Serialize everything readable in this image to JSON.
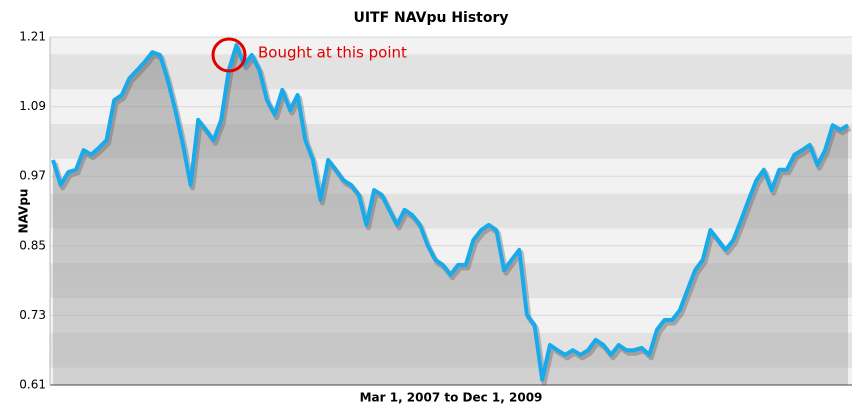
{
  "chart_data": {
    "type": "line",
    "title": "UITF NAVpu History",
    "y_label": "NAVpu",
    "x_label": "Mar 1, 2007 to Dec 1, 2009",
    "annotation": "Bought at this point",
    "color": "#19aaeb",
    "ylim": [
      0.61,
      1.21
    ],
    "yticks": [
      0.61,
      0.73,
      0.85,
      0.97,
      1.09,
      1.21
    ],
    "grid": true,
    "values": [
      0.998,
      0.955,
      0.977,
      0.981,
      1.015,
      1.007,
      1.019,
      1.032,
      1.101,
      1.11,
      1.139,
      1.153,
      1.167,
      1.184,
      1.179,
      1.136,
      1.084,
      1.024,
      0.955,
      1.067,
      1.05,
      1.032,
      1.067,
      1.153,
      1.196,
      1.162,
      1.179,
      1.153,
      1.101,
      1.076,
      1.119,
      1.084,
      1.11,
      1.032,
      0.998,
      0.929,
      0.998,
      0.981,
      0.963,
      0.955,
      0.938,
      0.886,
      0.946,
      0.938,
      0.912,
      0.886,
      0.912,
      0.903,
      0.886,
      0.851,
      0.826,
      0.817,
      0.8,
      0.817,
      0.817,
      0.86,
      0.877,
      0.886,
      0.877,
      0.808,
      0.826,
      0.843,
      0.731,
      0.713,
      0.619,
      0.679,
      0.67,
      0.662,
      0.67,
      0.662,
      0.67,
      0.688,
      0.679,
      0.662,
      0.679,
      0.67,
      0.67,
      0.674,
      0.662,
      0.705,
      0.722,
      0.722,
      0.739,
      0.774,
      0.808,
      0.826,
      0.877,
      0.86,
      0.843,
      0.86,
      0.894,
      0.929,
      0.963,
      0.981,
      0.946,
      0.981,
      0.981,
      1.007,
      1.015,
      1.024,
      0.989,
      1.015,
      1.058,
      1.05,
      1.058
    ]
  }
}
